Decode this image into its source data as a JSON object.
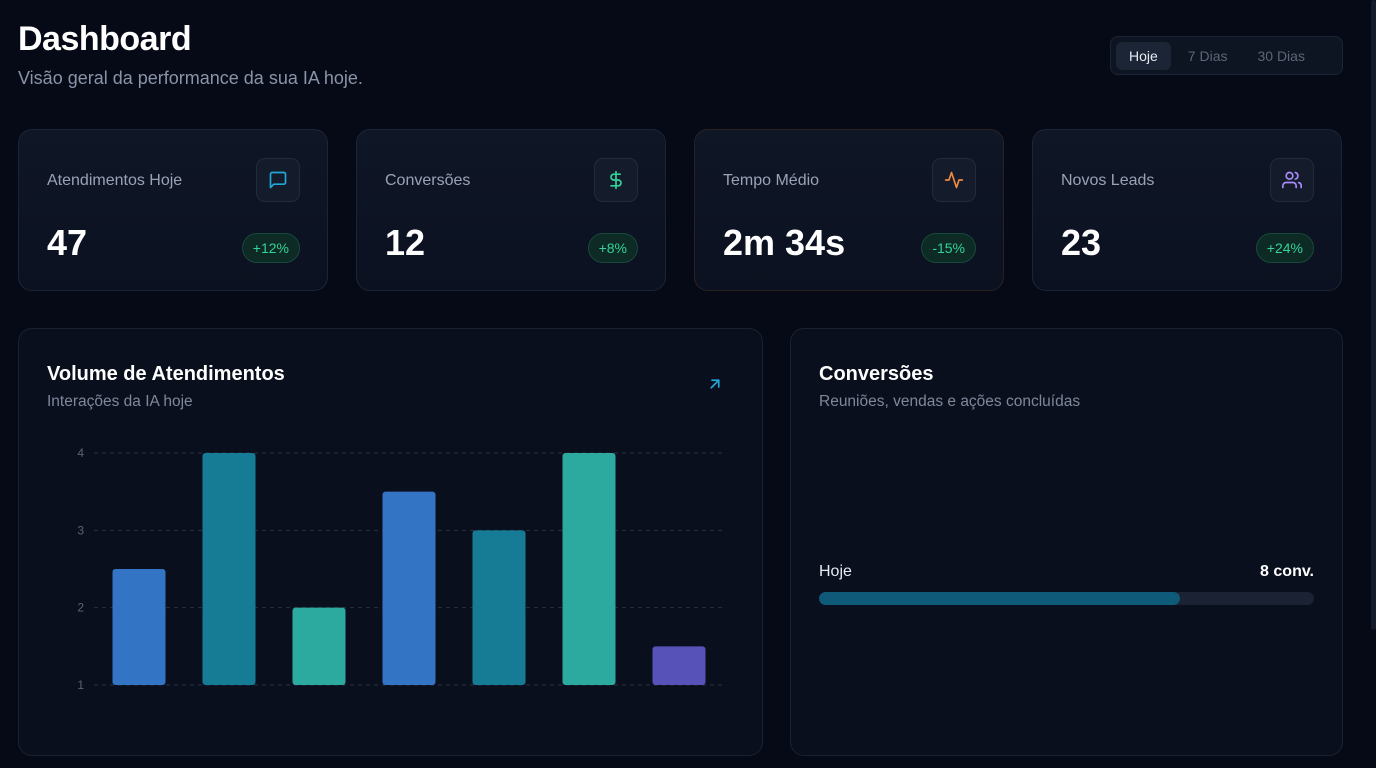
{
  "header": {
    "title": "Dashboard",
    "subtitle": "Visão geral da performance da sua IA hoje."
  },
  "range_tabs": [
    {
      "label": "Hoje",
      "active": true
    },
    {
      "label": "7 Dias",
      "active": false
    },
    {
      "label": "30 Dias",
      "active": false
    }
  ],
  "stats": [
    {
      "label": "Atendimentos Hoje",
      "value": "47",
      "change": "+12%",
      "icon": "message-square-icon",
      "icon_color": "#22a7d8"
    },
    {
      "label": "Conversões",
      "value": "12",
      "change": "+8%",
      "icon": "dollar-sign-icon",
      "icon_color": "#34d399"
    },
    {
      "label": "Tempo Médio",
      "value": "2m 34s",
      "change": "-15%",
      "icon": "activity-icon",
      "icon_color": "#f0883e"
    },
    {
      "label": "Novos Leads",
      "value": "23",
      "change": "+24%",
      "icon": "users-icon",
      "icon_color": "#a78bfa"
    }
  ],
  "volume_panel": {
    "title": "Volume de Atendimentos",
    "subtitle": "Interações da IA hoje",
    "expand_icon": "arrow-up-right-icon"
  },
  "chart_data": {
    "type": "bar",
    "title": "Volume de Atendimentos",
    "ylim": [
      1,
      4
    ],
    "yticks": [
      "1",
      "2",
      "3",
      "4"
    ],
    "grid": true,
    "values": [
      2.5,
      4,
      2,
      3.5,
      3,
      4,
      1.5
    ],
    "colors": [
      "#3474c4",
      "#167c96",
      "#2daa9f",
      "#3474c4",
      "#167c96",
      "#2daa9f",
      "#5752b8"
    ]
  },
  "conversions_panel": {
    "title": "Conversões",
    "subtitle": "Reuniões, vendas e ações concluídas",
    "row_label": "Hoje",
    "row_value": "8 conv.",
    "progress": 0.73
  }
}
